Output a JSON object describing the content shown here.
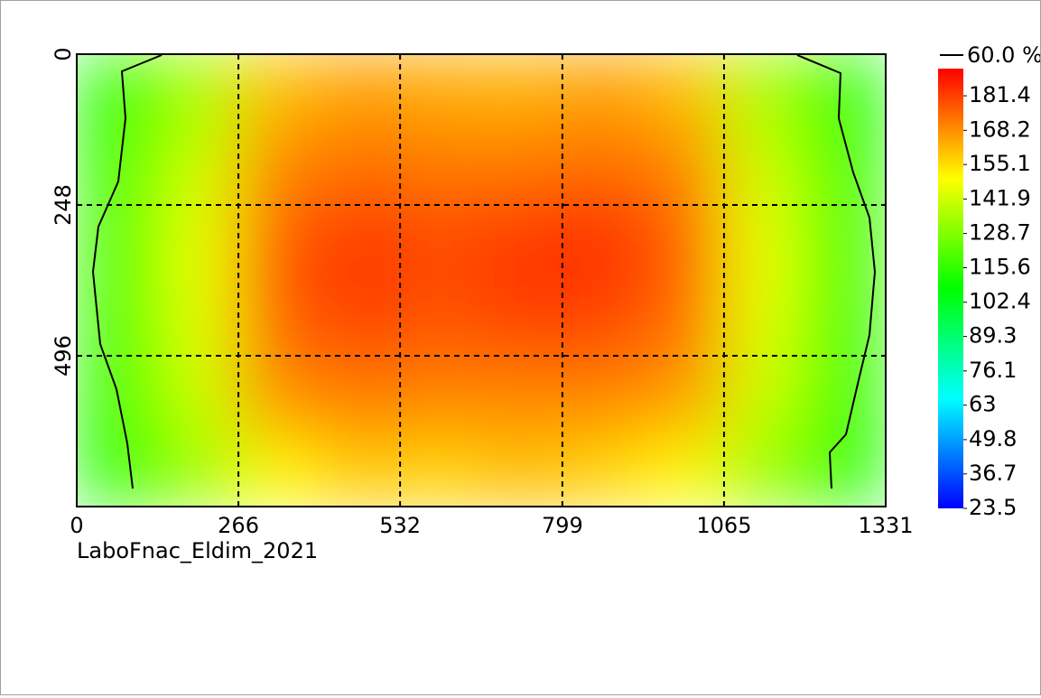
{
  "chart_data": {
    "type": "heatmap",
    "xlim": [
      0,
      1331
    ],
    "xticks": [
      0,
      266,
      532,
      799,
      1065,
      1331
    ],
    "ylim": [
      0,
      744
    ],
    "yticks": [
      0,
      248,
      496
    ],
    "grid": true,
    "zlim": [
      23.5,
      191.8
    ],
    "zticks": [
      23.5,
      36.7,
      49.8,
      63.0,
      76.1,
      89.3,
      102.4,
      115.6,
      128.7,
      141.9,
      155.1,
      168.2,
      181.4
    ],
    "contour_label": "60.0 %",
    "footer": "LaboFnac_Eldim_2021",
    "values": [
      [
        112,
        135,
        160,
        165,
        163,
        162,
        165,
        160,
        135,
        112
      ],
      [
        115,
        140,
        168,
        172,
        170,
        170,
        172,
        168,
        140,
        115
      ],
      [
        118,
        145,
        175,
        180,
        178,
        180,
        182,
        175,
        145,
        118
      ],
      [
        118,
        146,
        178,
        184,
        180,
        184,
        184,
        176,
        146,
        118
      ],
      [
        117,
        144,
        174,
        178,
        176,
        178,
        178,
        172,
        144,
        117
      ],
      [
        115,
        140,
        166,
        170,
        168,
        168,
        168,
        164,
        140,
        115
      ],
      [
        112,
        132,
        150,
        158,
        156,
        160,
        156,
        150,
        132,
        112
      ]
    ]
  }
}
